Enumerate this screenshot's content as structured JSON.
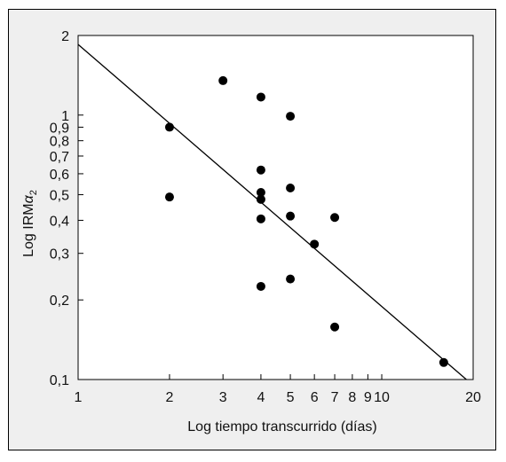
{
  "chart_data": {
    "type": "scatter",
    "xlabel": "Log tiempo transcurrido (días)",
    "ylabel_main": "Log IRM",
    "ylabel_symbol": "α",
    "ylabel_subscript": "2",
    "x_scale": "log",
    "y_scale": "log",
    "xlim": [
      1,
      20
    ],
    "ylim": [
      0.1,
      2
    ],
    "grid": false,
    "x_ticks": [
      {
        "value": 1,
        "label": "1"
      },
      {
        "value": 2,
        "label": "2"
      },
      {
        "value": 3,
        "label": "3"
      },
      {
        "value": 4,
        "label": "4"
      },
      {
        "value": 5,
        "label": "5"
      },
      {
        "value": 6,
        "label": "6"
      },
      {
        "value": 7,
        "label": "7"
      },
      {
        "value": 8,
        "label": "8"
      },
      {
        "value": 9,
        "label": "9"
      },
      {
        "value": 10,
        "label": "10"
      },
      {
        "value": 20,
        "label": "20"
      }
    ],
    "y_ticks": [
      {
        "value": 0.1,
        "label": "0,1"
      },
      {
        "value": 0.2,
        "label": "0,2"
      },
      {
        "value": 0.3,
        "label": "0,3"
      },
      {
        "value": 0.4,
        "label": "0,4"
      },
      {
        "value": 0.5,
        "label": "0,5"
      },
      {
        "value": 0.6,
        "label": "0,6"
      },
      {
        "value": 0.7,
        "label": "0,7"
      },
      {
        "value": 0.8,
        "label": "0,8"
      },
      {
        "value": 0.9,
        "label": "0,9"
      },
      {
        "value": 1,
        "label": "1"
      },
      {
        "value": 2,
        "label": "2"
      }
    ],
    "points": [
      {
        "x": 2,
        "y": 0.9
      },
      {
        "x": 2,
        "y": 0.49
      },
      {
        "x": 3,
        "y": 1.35
      },
      {
        "x": 4,
        "y": 1.17
      },
      {
        "x": 4,
        "y": 0.62
      },
      {
        "x": 4,
        "y": 0.51
      },
      {
        "x": 4,
        "y": 0.48
      },
      {
        "x": 4,
        "y": 0.405
      },
      {
        "x": 4,
        "y": 0.225
      },
      {
        "x": 5,
        "y": 0.99
      },
      {
        "x": 5,
        "y": 0.53
      },
      {
        "x": 5,
        "y": 0.415
      },
      {
        "x": 5,
        "y": 0.24
      },
      {
        "x": 6,
        "y": 0.325
      },
      {
        "x": 7,
        "y": 0.41
      },
      {
        "x": 7,
        "y": 0.158
      },
      {
        "x": 16,
        "y": 0.116
      }
    ],
    "trend_line": {
      "x": [
        1,
        19
      ],
      "y": [
        1.85,
        0.1
      ]
    },
    "colors": {
      "frame_background": "#efefef",
      "plot_background": "#ffffff",
      "marks": "#000000"
    }
  }
}
